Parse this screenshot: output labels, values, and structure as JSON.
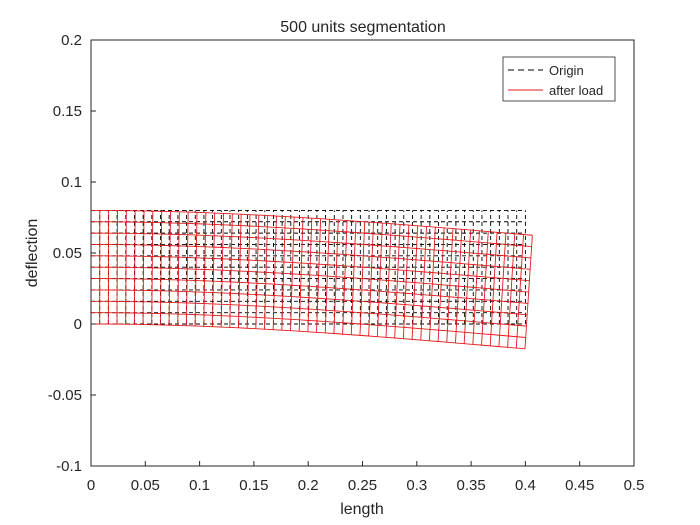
{
  "chart_data": {
    "type": "line",
    "title": "500 units segmentation",
    "xlabel": "length",
    "ylabel": "deflection",
    "xlim": [
      0,
      0.5
    ],
    "ylim": [
      -0.1,
      0.2
    ],
    "xticks": [
      0,
      0.05,
      0.1,
      0.15,
      0.2,
      0.25,
      0.3,
      0.35,
      0.4,
      0.45,
      0.5
    ],
    "xtick_labels": [
      "0",
      "0.05",
      "0.1",
      "0.15",
      "0.2",
      "0.25",
      "0.3",
      "0.35",
      "0.4",
      "0.45",
      "0.5"
    ],
    "yticks": [
      -0.1,
      -0.05,
      0,
      0.05,
      0.1,
      0.15,
      0.2
    ],
    "ytick_labels": [
      "-0.1",
      "-0.05",
      "0",
      "0.05",
      "0.1",
      "0.15",
      "0.2"
    ],
    "grid": false,
    "legend_position": "top-right",
    "series": [
      {
        "name": "Origin",
        "style": "dashed",
        "color": "#000000",
        "mesh": {
          "x_start": 0,
          "x_end": 0.4,
          "y_bottom": 0,
          "y_top": 0.08,
          "columns": 50,
          "rows": 10
        }
      },
      {
        "name": "after load",
        "style": "solid",
        "color": "#e31a1c",
        "mesh": {
          "x_start": 0,
          "x_end": 0.4,
          "y_bottom": 0,
          "y_top": 0.08,
          "columns": 50,
          "rows": 10,
          "tip_deflection": -0.0175,
          "tip_end_x": 0.403
        }
      }
    ]
  }
}
